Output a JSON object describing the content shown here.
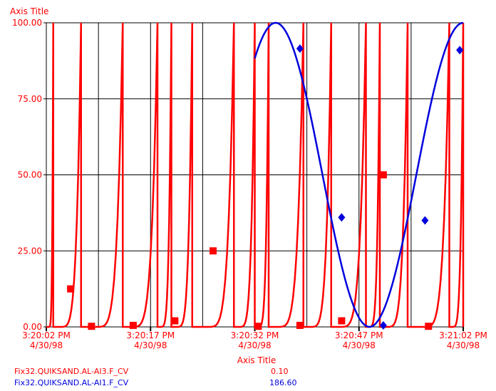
{
  "chart_data": {
    "type": "line",
    "ylabel": "Axis Title",
    "xlabel": "Axis Title",
    "ylim": [
      0,
      100
    ],
    "y_ticks": [
      "0.00",
      "25.00",
      "50.00",
      "75.00",
      "100.00"
    ],
    "x_ticks": [
      {
        "time": "3:20:02 PM",
        "date": "4/30/98"
      },
      {
        "time": "3:20:17 PM",
        "date": "4/30/98"
      },
      {
        "time": "3:20:32 PM",
        "date": "4/30/98"
      },
      {
        "time": "3:20:47 PM",
        "date": "4/30/98"
      },
      {
        "time": "3:21:02 PM",
        "date": "4/30/98"
      }
    ],
    "grid": true,
    "series": [
      {
        "name": "Fix32.QUIKSAND.AL-AI3.F_CV",
        "color": "#ff0000",
        "marker": "square",
        "current_value": "0.10",
        "shape": "sawtooth-spikes",
        "spike_times_s": [
          1,
          5,
          11,
          16,
          18,
          21,
          27,
          30,
          32,
          37,
          41,
          46,
          48,
          52,
          58,
          60
        ],
        "markers": [
          {
            "t": 3.5,
            "y": 12.5
          },
          {
            "t": 6.5,
            "y": 0.2
          },
          {
            "t": 12.5,
            "y": 0.5
          },
          {
            "t": 18.5,
            "y": 2
          },
          {
            "t": 24.0,
            "y": 25
          },
          {
            "t": 30.5,
            "y": 0.2
          },
          {
            "t": 36.5,
            "y": 0.5
          },
          {
            "t": 42.5,
            "y": 2
          },
          {
            "t": 48.5,
            "y": 50
          },
          {
            "t": 55.0,
            "y": 0.2
          }
        ]
      },
      {
        "name": "Fix32.QUIKSAND.AL-AI1.F_CV",
        "color": "#0000dd",
        "marker": "diamond",
        "current_value": "186.60",
        "curve_start_s": 30,
        "curve_end_s": 60,
        "peak_s": 33,
        "trough_s": 46.5,
        "markers": [
          {
            "t": 36.5,
            "y": 91.5
          },
          {
            "t": 42.5,
            "y": 36
          },
          {
            "t": 48.5,
            "y": 0.5
          },
          {
            "t": 54.5,
            "y": 35
          },
          {
            "t": 59.5,
            "y": 91
          }
        ]
      }
    ]
  }
}
